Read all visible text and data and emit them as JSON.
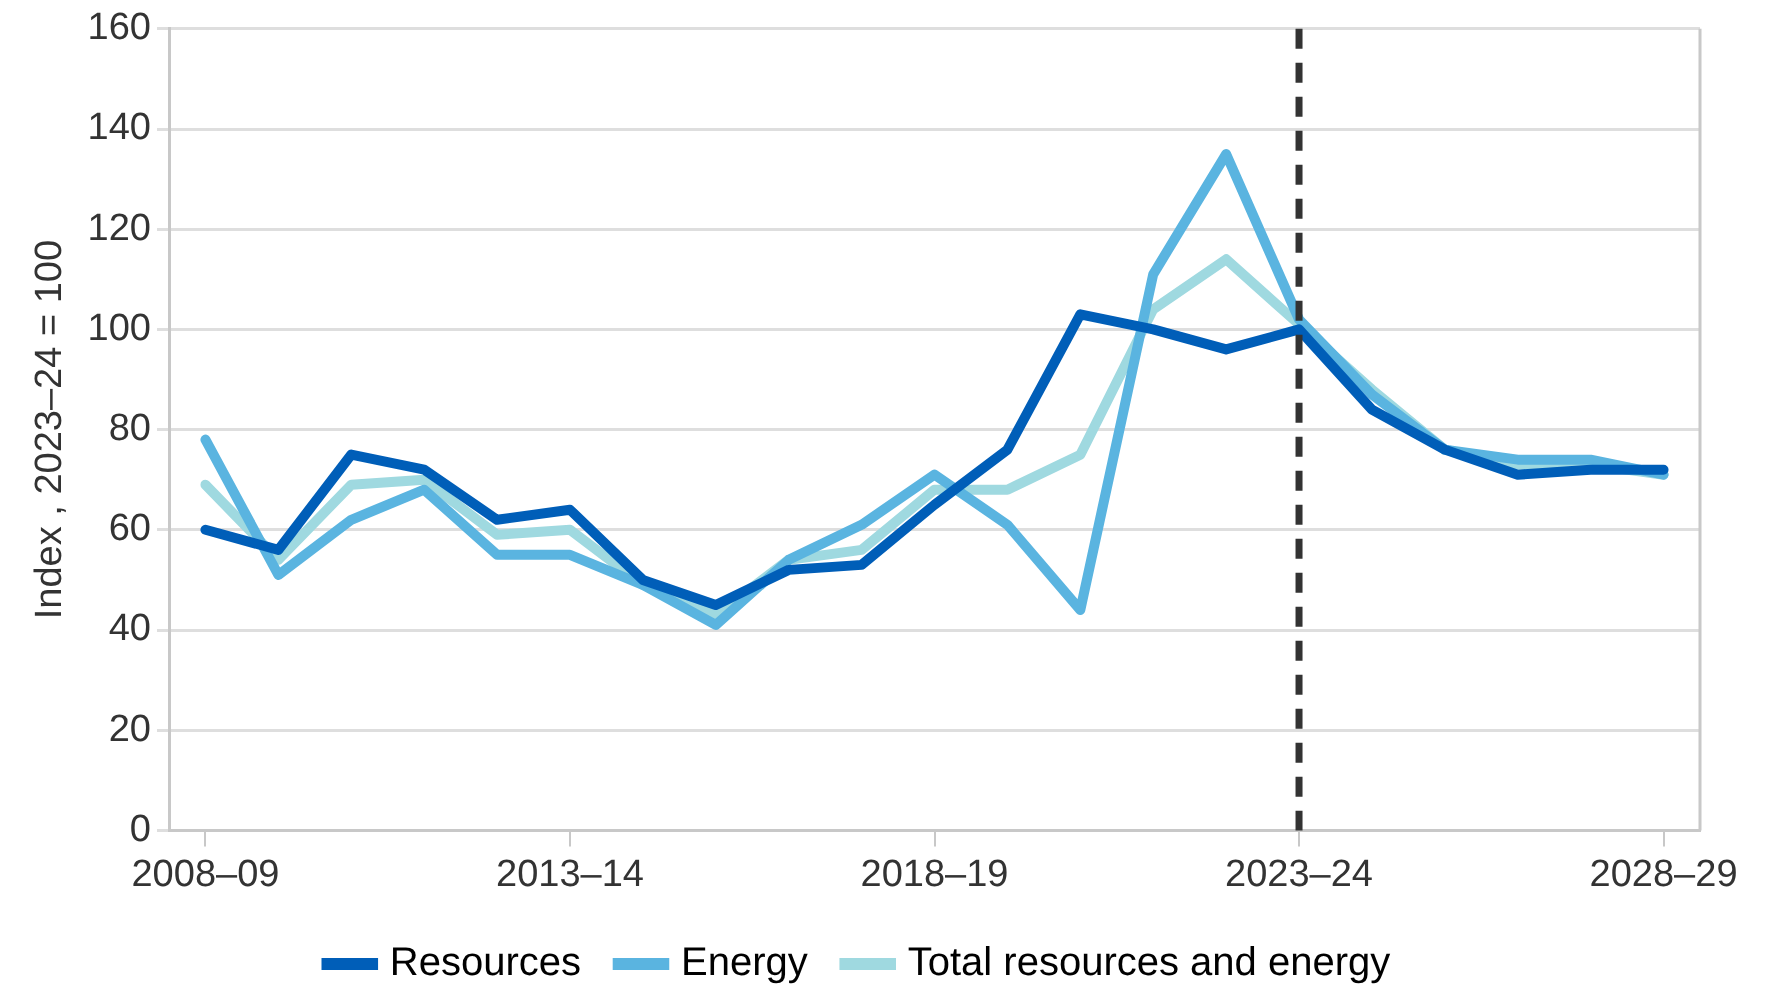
{
  "chart_data": {
    "type": "line",
    "ylabel": "Index , 2023–24 = 100",
    "categories": [
      "2008–09",
      null,
      null,
      null,
      null,
      "2013–14",
      null,
      null,
      null,
      null,
      "2018–19",
      null,
      null,
      null,
      null,
      "2023–24",
      null,
      null,
      null,
      null,
      "2028–29"
    ],
    "series": [
      {
        "name": "Resources",
        "color": "#005eb8",
        "values": [
          60,
          56,
          75,
          72,
          62,
          64,
          50,
          45,
          52,
          53,
          65,
          76,
          103,
          100,
          96,
          100,
          84,
          76,
          71,
          72,
          72
        ]
      },
      {
        "name": "Energy",
        "color": "#5ab4e0",
        "values": [
          78,
          51,
          62,
          68,
          55,
          55,
          49,
          41,
          54,
          61,
          71,
          61,
          44,
          111,
          135,
          102,
          87,
          76,
          74,
          74,
          71
        ]
      },
      {
        "name": "Total resources and energy",
        "color": "#9fd9e0",
        "values": [
          69,
          54,
          69,
          70,
          59,
          60,
          49,
          43,
          54,
          56,
          68,
          68,
          75,
          104,
          114,
          101,
          88,
          76,
          73,
          73,
          71
        ]
      }
    ],
    "ylim": [
      0,
      160
    ],
    "yticks": [
      0,
      20,
      40,
      60,
      80,
      100,
      120,
      140,
      160
    ],
    "ref_lines": [
      {
        "axis": "x",
        "value": "2023–24",
        "color": "#333333",
        "line_style": "dashed"
      }
    ],
    "grid": "y",
    "legend": "bottom",
    "marker": "none",
    "line_style": "solid"
  }
}
